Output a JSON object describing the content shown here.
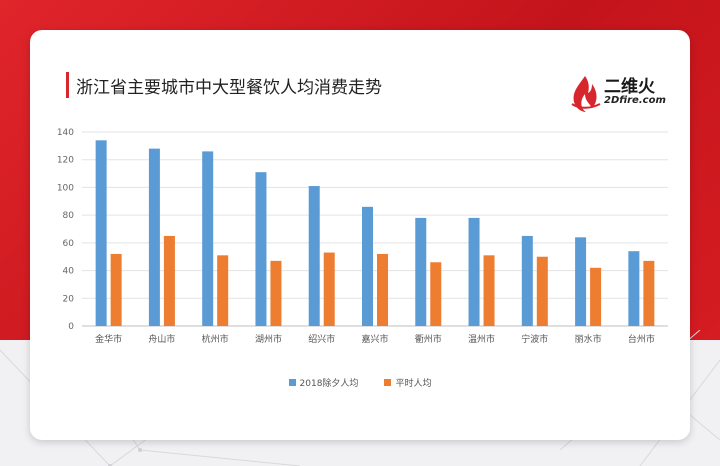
{
  "title": "浙江省主要城市中大型餐饮人均消费走势",
  "logo": {
    "cn": "二维火",
    "en": "2Dfire.com"
  },
  "colors": {
    "series1": "#5b9bd5",
    "series2": "#ed7d31",
    "accent": "#d7262c"
  },
  "chart_data": {
    "type": "bar",
    "title": "浙江省主要城市中大型餐饮人均消费走势",
    "categories": [
      "金华市",
      "舟山市",
      "杭州市",
      "湖州市",
      "绍兴市",
      "嘉兴市",
      "衢州市",
      "温州市",
      "宁波市",
      "丽水市",
      "台州市"
    ],
    "series": [
      {
        "name": "2018除夕人均",
        "values": [
          134,
          128,
          126,
          111,
          101,
          86,
          78,
          78,
          65,
          64,
          54
        ]
      },
      {
        "name": "平时人均",
        "values": [
          52,
          65,
          51,
          47,
          53,
          52,
          46,
          51,
          50,
          42,
          47
        ]
      }
    ],
    "yticks": [
      "0",
      "20",
      "40",
      "60",
      "80",
      "100",
      "120",
      "140"
    ],
    "ylim": [
      0,
      140
    ],
    "grid": true,
    "legend_position": "bottom"
  }
}
